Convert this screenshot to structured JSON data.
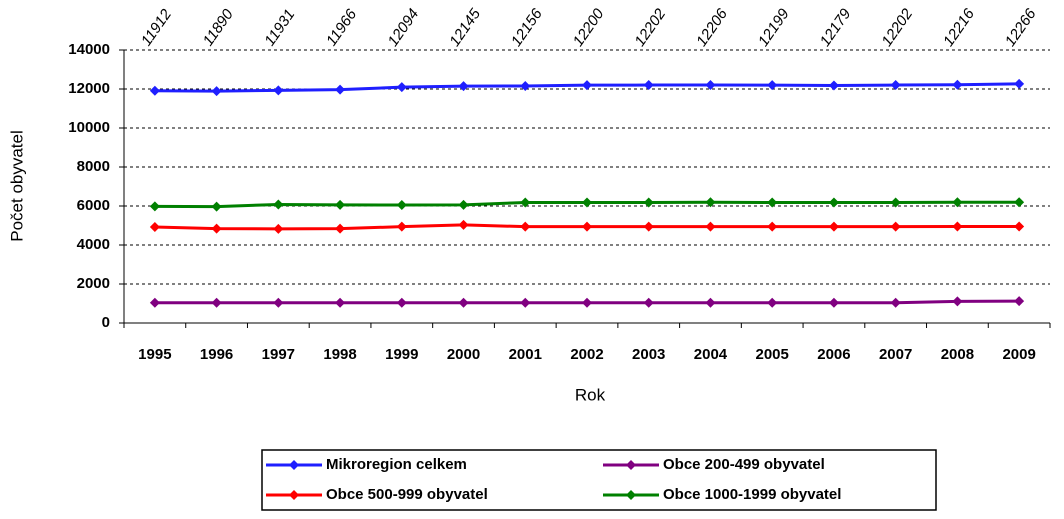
{
  "chart_data": {
    "type": "line",
    "y_label": "Počet obyvatel",
    "x_label": "Rok",
    "categories": [
      "1995",
      "1996",
      "1997",
      "1998",
      "1999",
      "2000",
      "2001",
      "2002",
      "2003",
      "2004",
      "2005",
      "2006",
      "2007",
      "2008",
      "2009"
    ],
    "series": [
      {
        "name": "Mikroregion celkem",
        "color": "#1f1fff",
        "values": [
          11912,
          11890,
          11931,
          11966,
          12094,
          12145,
          12156,
          12200,
          12202,
          12206,
          12199,
          12179,
          12202,
          12216,
          12266
        ]
      },
      {
        "name": "Obce 200-499 obyvatel",
        "color": "#800080",
        "values": [
          1040,
          1040,
          1040,
          1040,
          1040,
          1040,
          1040,
          1040,
          1040,
          1040,
          1040,
          1040,
          1040,
          1110,
          1120
        ]
      },
      {
        "name": "Obce 500-999 obyvatel",
        "color": "#ff0000",
        "values": [
          4920,
          4840,
          4830,
          4840,
          4940,
          5030,
          4940,
          4940,
          4940,
          4940,
          4940,
          4940,
          4940,
          4950,
          4950
        ]
      },
      {
        "name": "Obce 1000-1999 obyvatel",
        "color": "#008000",
        "values": [
          5980,
          5970,
          6080,
          6060,
          6050,
          6060,
          6180,
          6180,
          6180,
          6190,
          6180,
          6180,
          6180,
          6190,
          6190
        ]
      }
    ],
    "ylim": [
      0,
      14000
    ],
    "yticks": [
      0,
      2000,
      4000,
      6000,
      8000,
      10000,
      12000,
      14000
    ],
    "grid": true
  }
}
